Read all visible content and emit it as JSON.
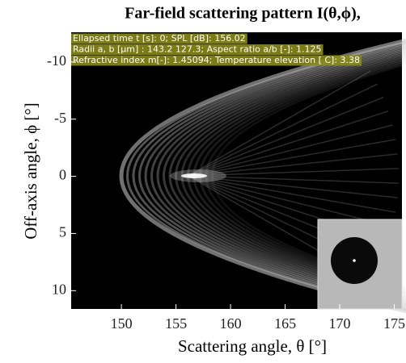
{
  "chart_data": {
    "type": "image",
    "title": "Far-field scattering pattern I(θ,ϕ),",
    "x_label": "Scattering angle, θ [°]",
    "y_label": "Off-axis angle, ϕ [°]",
    "xlim": [
      145.4,
      175.7
    ],
    "xticks": [
      150,
      155,
      160,
      165,
      170,
      175
    ],
    "ylim": [
      11.6,
      -12.6
    ],
    "yticks": [
      -10,
      -5,
      0,
      5,
      10
    ],
    "annotations": [
      "Ellapsed time t [s]: 0; SPL [dB]: 156.02",
      "Radii a, b [μm] : 143.2 127.3; Aspect ratio a/b [-]: 1.125",
      "Refractive index m[-]: 1.45094; Temperature elevation [ C]: 3.38"
    ]
  }
}
